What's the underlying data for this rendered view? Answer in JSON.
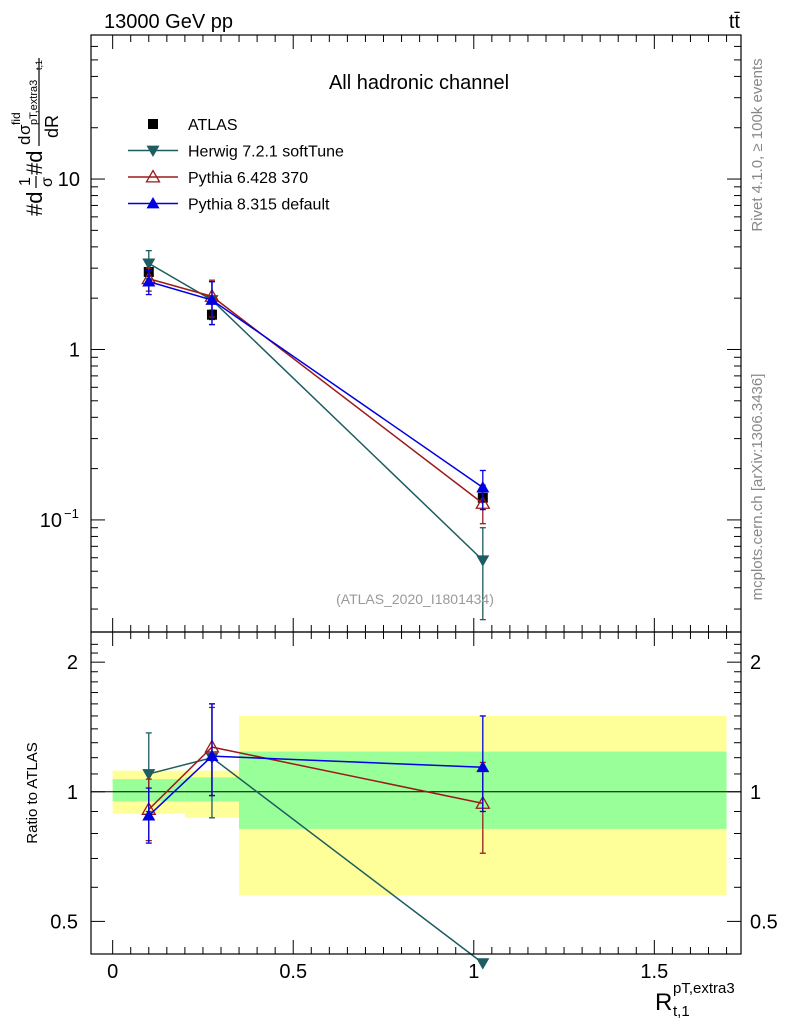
{
  "header": {
    "energy_label": "13000 GeV pp",
    "process_label": "tt̄"
  },
  "side_labels": {
    "rivet": "Rivet 4.1.0, ≥ 100k events",
    "mcplots": "mcplots.cern.ch [arXiv:1306.3436]"
  },
  "chart_data": [
    {
      "type": "scatter",
      "title": "All hadronic channel",
      "analysis_tag": "(ATLAS_2020_I1801434)",
      "ylabel_parts": {
        "first": "#d",
        "one": "1",
        "sigma": "σ",
        "second": "#d",
        "d": "d",
        "sigma_sym": "σ",
        "fid": "fid",
        "pt_extra3": "pT,extra3",
        "t1_sub": "t,1",
        "dR": "dR"
      },
      "yscale": "log",
      "ylim": [
        0.022,
        70
      ],
      "xlim": [
        -0.06,
        1.74
      ],
      "y_ticks": [
        {
          "value": 10,
          "label": "10"
        },
        {
          "value": 1,
          "label": "1"
        },
        {
          "value": 0.1,
          "label": "10",
          "exponent": "−1"
        }
      ],
      "legend": {
        "position": "top-left",
        "entries": [
          {
            "name": "ATLAS",
            "color": "#000000",
            "marker": "square"
          },
          {
            "name": "Herwig 7.2.1 softTune",
            "color": "#1d5c60",
            "marker": "triangle-down"
          },
          {
            "name": "Pythia 6.428 370",
            "color": "#9b1b1b",
            "marker": "triangle-up-open"
          },
          {
            "name": "Pythia 8.315 default",
            "color": "#0000e0",
            "marker": "triangle-up"
          }
        ]
      },
      "series": [
        {
          "name": "ATLAS",
          "x": [
            0.1,
            0.275,
            1.025
          ],
          "y": [
            2.85,
            1.6,
            0.135
          ],
          "err_lo": [
            2.7,
            1.5,
            0.13
          ],
          "err_hi": [
            3.0,
            1.7,
            0.14
          ]
        },
        {
          "name": "Herwig 7.2.1 softTune",
          "x": [
            0.1,
            0.275,
            1.025
          ],
          "y": [
            3.2,
            1.95,
            0.058
          ],
          "err_lo": [
            2.6,
            1.4,
            0.026
          ],
          "err_hi": [
            3.8,
            2.5,
            0.09
          ]
        },
        {
          "name": "Pythia 6.428 370",
          "x": [
            0.1,
            0.275,
            1.025
          ],
          "y": [
            2.6,
            2.05,
            0.125
          ],
          "err_lo": [
            2.2,
            1.55,
            0.095
          ],
          "err_hi": [
            3.0,
            2.55,
            0.16
          ]
        },
        {
          "name": "Pythia 8.315 default",
          "x": [
            0.1,
            0.275,
            1.025
          ],
          "y": [
            2.5,
            1.95,
            0.155
          ],
          "err_lo": [
            2.1,
            1.4,
            0.115
          ],
          "err_hi": [
            2.9,
            2.5,
            0.195
          ]
        }
      ]
    },
    {
      "type": "scatter",
      "title": "",
      "ylabel": "Ratio to ATLAS",
      "xlabel_main": "R",
      "xlabel_sup": "pT,extra3",
      "xlabel_sub": "t,1",
      "yscale": "log",
      "ylim": [
        0.42,
        2.35
      ],
      "xlim": [
        -0.06,
        1.74
      ],
      "x_ticks": [
        {
          "value": 0,
          "label": "0"
        },
        {
          "value": 0.5,
          "label": "0.5"
        },
        {
          "value": 1,
          "label": "1"
        },
        {
          "value": 1.5,
          "label": "1.5"
        }
      ],
      "y_ticks": [
        {
          "value": 2,
          "label": "2"
        },
        {
          "value": 1,
          "label": "1"
        },
        {
          "value": 0.5,
          "label": "0.5"
        }
      ],
      "uncertainty_bands": [
        {
          "x0": 0.0,
          "x1": 0.2,
          "yellow": [
            0.89,
            1.12
          ],
          "green": [
            0.95,
            1.07
          ]
        },
        {
          "x0": 0.2,
          "x1": 0.35,
          "yellow": [
            0.87,
            1.12
          ],
          "green": [
            0.95,
            1.08
          ]
        },
        {
          "x0": 0.35,
          "x1": 1.7,
          "yellow": [
            0.575,
            1.5
          ],
          "green": [
            0.82,
            1.24
          ]
        }
      ],
      "band_colors": {
        "yellow": "#ffff99",
        "green": "#99ff99"
      },
      "reference_line": 1,
      "series": [
        {
          "name": "Herwig 7.2.1 softTune",
          "x": [
            0.1,
            0.275,
            1.025
          ],
          "y": [
            1.1,
            1.2,
            0.4
          ],
          "err_lo": [
            0.9,
            0.87,
            0.4
          ],
          "err_hi": [
            1.37,
            1.6,
            0.4
          ]
        },
        {
          "name": "Pythia 6.428 370",
          "x": [
            0.1,
            0.275,
            1.025
          ],
          "y": [
            0.91,
            1.27,
            0.94
          ],
          "err_lo": [
            0.77,
            0.98,
            0.72
          ],
          "err_hi": [
            1.07,
            1.57,
            1.17
          ]
        },
        {
          "name": "Pythia 8.315 default",
          "x": [
            0.1,
            0.275,
            1.025
          ],
          "y": [
            0.88,
            1.21,
            1.14
          ],
          "err_lo": [
            0.76,
            0.98,
            0.9
          ],
          "err_hi": [
            1.02,
            1.6,
            1.5
          ]
        }
      ]
    }
  ]
}
